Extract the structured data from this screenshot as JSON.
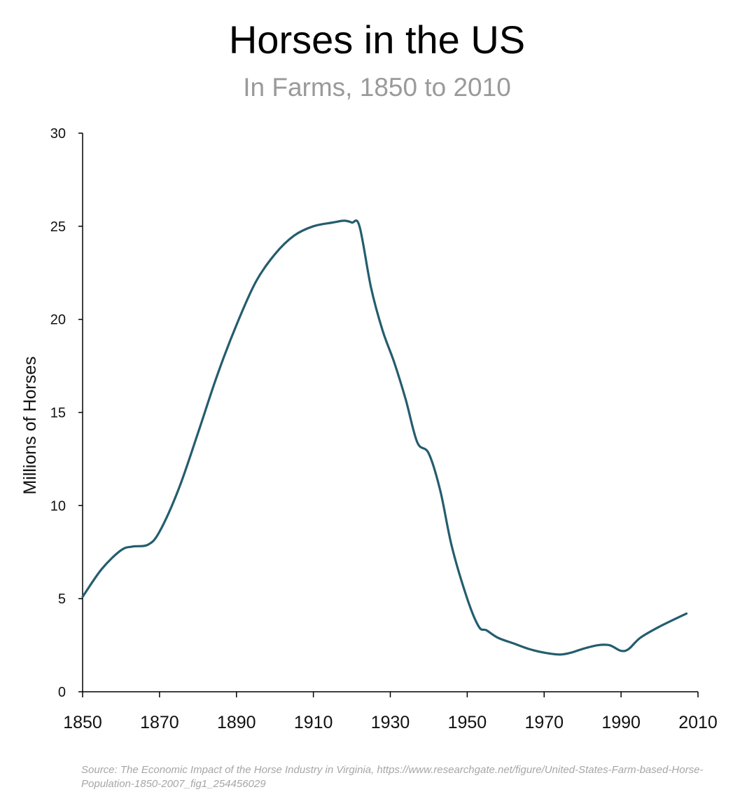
{
  "chart_data": {
    "type": "line",
    "title": "Horses in the US",
    "subtitle": "In Farms, 1850 to 2010",
    "xlabel": "",
    "ylabel": "Millions of Horses",
    "xlim": [
      1850,
      2010
    ],
    "ylim": [
      0,
      30
    ],
    "x_ticks": [
      1850,
      1870,
      1890,
      1910,
      1930,
      1950,
      1970,
      1990,
      2010
    ],
    "y_ticks": [
      0,
      5,
      10,
      15,
      20,
      25,
      30
    ],
    "grid": false,
    "color": "#245d6e",
    "series": [
      {
        "x": [
          1850,
          1855,
          1860,
          1863,
          1867,
          1870,
          1875,
          1880,
          1885,
          1890,
          1895,
          1900,
          1905,
          1910,
          1915,
          1918,
          1920,
          1922,
          1925,
          1928,
          1931,
          1934,
          1937,
          1940,
          1943,
          1946,
          1950,
          1953,
          1955,
          1958,
          1962,
          1966,
          1970,
          1974,
          1977,
          1980,
          1984,
          1987,
          1990,
          1992,
          1995,
          2000,
          2007
        ],
        "y": [
          5.1,
          6.6,
          7.6,
          7.8,
          7.9,
          8.6,
          10.9,
          13.9,
          17.0,
          19.7,
          22.0,
          23.5,
          24.5,
          25.0,
          25.2,
          25.3,
          25.2,
          25.0,
          21.7,
          19.4,
          17.7,
          15.7,
          13.4,
          12.8,
          10.8,
          7.8,
          5.0,
          3.5,
          3.3,
          2.9,
          2.6,
          2.3,
          2.1,
          2.0,
          2.1,
          2.3,
          2.5,
          2.5,
          2.2,
          2.3,
          2.9,
          3.5,
          4.2
        ]
      }
    ]
  },
  "source": "Source: The Economic Impact of the Horse Industry in Virginia, https://www.researchgate.net/figure/United-States-Farm-based-Horse-Population-1850-2007_fig1_254456029"
}
